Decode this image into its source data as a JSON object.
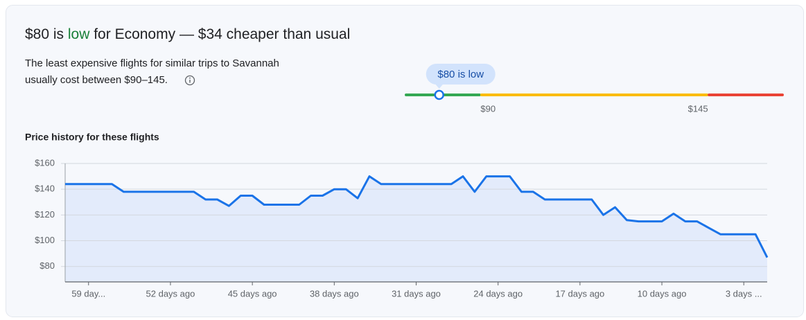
{
  "header": {
    "title_prefix": "$80 is ",
    "title_highlight": "low",
    "title_suffix": " for Economy — $34 cheaper than usual",
    "description": [
      "The least expensive flights for similar trips to Savannah",
      "usually cost between $90–145."
    ]
  },
  "price_range": {
    "badge": "$80 is low",
    "current": 80,
    "lim": [
      72,
      163
    ],
    "low_threshold": {
      "value": 90,
      "label": "$90"
    },
    "high_threshold": {
      "value": 145,
      "label": "$145"
    },
    "colors": [
      "#34a853",
      "#fbbc04",
      "#ea4335"
    ]
  },
  "chart_data": {
    "type": "line",
    "title": "Price history for these flights",
    "color": "#1a73e8",
    "area_color": "#e3ebfb",
    "x": [
      61,
      60,
      59,
      58,
      57,
      56,
      55,
      54,
      53,
      52,
      51,
      50,
      49,
      48,
      47,
      46,
      45,
      44,
      43,
      42,
      41,
      40,
      39,
      38,
      37,
      36,
      35,
      34,
      33,
      32,
      31,
      30,
      29,
      28,
      27,
      26,
      25,
      24,
      23,
      22,
      21,
      20,
      19,
      18,
      17,
      16,
      15,
      14,
      13,
      12,
      11,
      10,
      9,
      8,
      7,
      6,
      5,
      4,
      3,
      2,
      1
    ],
    "values": [
      144,
      144,
      144,
      144,
      144,
      138,
      138,
      138,
      138,
      138,
      138,
      138,
      132,
      132,
      127,
      135,
      135,
      128,
      128,
      128,
      128,
      135,
      135,
      140,
      140,
      133,
      150,
      144,
      144,
      144,
      144,
      144,
      144,
      144,
      150,
      138,
      150,
      150,
      150,
      138,
      138,
      132,
      132,
      132,
      132,
      132,
      120,
      126,
      116,
      115,
      115,
      115,
      121,
      115,
      115,
      110,
      105,
      105,
      105,
      105,
      87
    ],
    "xlim": [
      61,
      1
    ],
    "xticks": [
      {
        "value": 59,
        "label": "59 day..."
      },
      {
        "value": 52,
        "label": "52 days ago"
      },
      {
        "value": 45,
        "label": "45 days ago"
      },
      {
        "value": 38,
        "label": "38 days ago"
      },
      {
        "value": 31,
        "label": "31 days ago"
      },
      {
        "value": 24,
        "label": "24 days ago"
      },
      {
        "value": 17,
        "label": "17 days ago"
      },
      {
        "value": 10,
        "label": "10 days ago"
      },
      {
        "value": 3,
        "label": "3 days ..."
      }
    ],
    "ylim": [
      68,
      160
    ],
    "yticks": [
      {
        "value": 80,
        "label": "$80"
      },
      {
        "value": 100,
        "label": "$100"
      },
      {
        "value": 120,
        "label": "$120"
      },
      {
        "value": 140,
        "label": "$140"
      },
      {
        "value": 160,
        "label": "$160"
      }
    ],
    "grid": true
  }
}
